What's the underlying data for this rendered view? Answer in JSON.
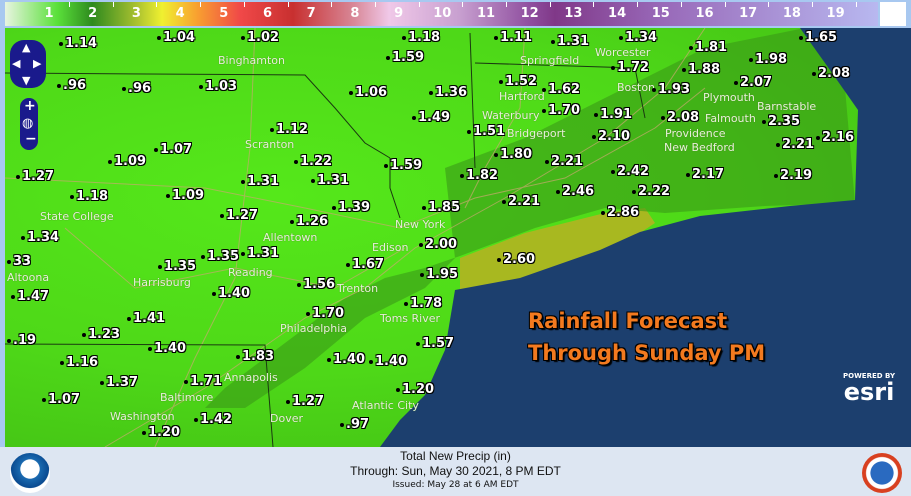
{
  "legend": {
    "labels": [
      "1",
      "2",
      "3",
      "4",
      "5",
      "6",
      "7",
      "8",
      "9",
      "10",
      "11",
      "12",
      "13",
      "14",
      "15",
      "16",
      "17",
      "18",
      "19"
    ]
  },
  "colors": {
    "ocean": "#1c3f6e",
    "land": "#4ed818",
    "heavy": "#a8b820",
    "forecast_text": "#f37a1f",
    "nav": "#1a1a8c"
  },
  "map": {
    "values": [
      "1.14",
      "1.04",
      "1.02",
      "1.18",
      "1.59",
      ".96",
      ".96",
      "1.03",
      "1.06",
      "1.36",
      "1.49",
      "1.12",
      "1.07",
      "1.09",
      "1.22",
      "1.59",
      "1.27",
      "1.31",
      "1.31",
      "1.18",
      "1.09",
      "1.39",
      "1.27",
      "1.26",
      "1.85",
      "1.34",
      "33",
      "2.00",
      "1.35",
      "1.31",
      "1.35",
      "1.67",
      "1.95",
      "1.56",
      "1.47",
      "1.40",
      "1.41",
      "1.70",
      "1.78",
      "1.23",
      ".19",
      "1.57",
      "1.40",
      "1.83",
      "1.40",
      "1.40",
      "1.16",
      "1.37",
      "1.71",
      "1.20",
      "1.07",
      "1.27",
      ".97",
      "1.42",
      "1.20",
      "1.11",
      "1.31",
      "1.34",
      "1.81",
      "1.98",
      "2.08",
      "1.65",
      "1.72",
      "1.88",
      "1.52",
      "1.62",
      "1.93",
      "2.07",
      "1.70",
      "1.91",
      "2.08",
      "2.35",
      "2.10",
      "2.16",
      "2.21",
      "1.51",
      "1.80",
      "2.21",
      "1.82",
      "2.42",
      "2.17",
      "2.19",
      "2.21",
      "2.46",
      "2.22",
      "2.86",
      "2.60"
    ],
    "cities": [
      "Binghamton",
      "Scranton",
      "State College",
      "Altoona",
      "Harrisburg",
      "Reading",
      "Allentown",
      "Edison",
      "New York",
      "Trenton",
      "Philadelphia",
      "Toms River",
      "Atlantic City",
      "Dover",
      "Baltimore",
      "Annapolis",
      "Washington",
      "Springfield",
      "Worcester",
      "Boston",
      "Hartford",
      "Waterbury",
      "Bridgeport",
      "Providence",
      "Plymouth",
      "Barnstable",
      "New Bedford",
      "Falmouth"
    ],
    "forecast_line1": "Rainfall Forecast",
    "forecast_line2": "Through Sunday PM",
    "esri_powered": "POWERED BY",
    "esri_logo": "esri",
    "nav_icons": [
      "pan-up-icon",
      "pan-left-icon",
      "pan-right-icon",
      "pan-down-icon",
      "zoom-in-icon",
      "globe-icon",
      "zoom-out-icon"
    ]
  },
  "footer": {
    "title": "Total New Precip (in)",
    "through": "Through: Sun, May 30 2021,   8 PM EDT",
    "issued": "Issued: May 28 at 6 AM EDT",
    "left_logo": "NOAA",
    "right_logo": "National Weather Service"
  }
}
